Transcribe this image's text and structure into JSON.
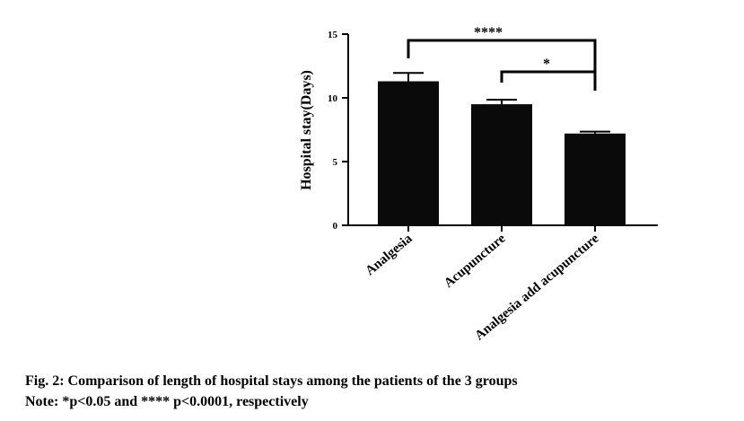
{
  "chart_data": {
    "type": "bar",
    "categories": [
      "Analgesia",
      "Acupuncture",
      "Analgesia add acupuncture"
    ],
    "values": [
      11.3,
      9.5,
      7.2
    ],
    "error": [
      0.65,
      0.35,
      0.15
    ],
    "ylabel": "Hospital stay(Days)",
    "ylim": [
      0,
      15
    ],
    "yticks": [
      0,
      5,
      10,
      15
    ],
    "grid": false,
    "bar_color": "#0a0a0a",
    "significance": [
      {
        "from": 0,
        "to": 2,
        "label": "****"
      },
      {
        "from": 1,
        "to": 2,
        "label": "*"
      }
    ]
  },
  "caption": {
    "line1": "Fig. 2: Comparison of length of hospital stays among the patients of the 3 groups",
    "line2": "Note: *p<0.05 and **** p<0.0001, respectively"
  }
}
